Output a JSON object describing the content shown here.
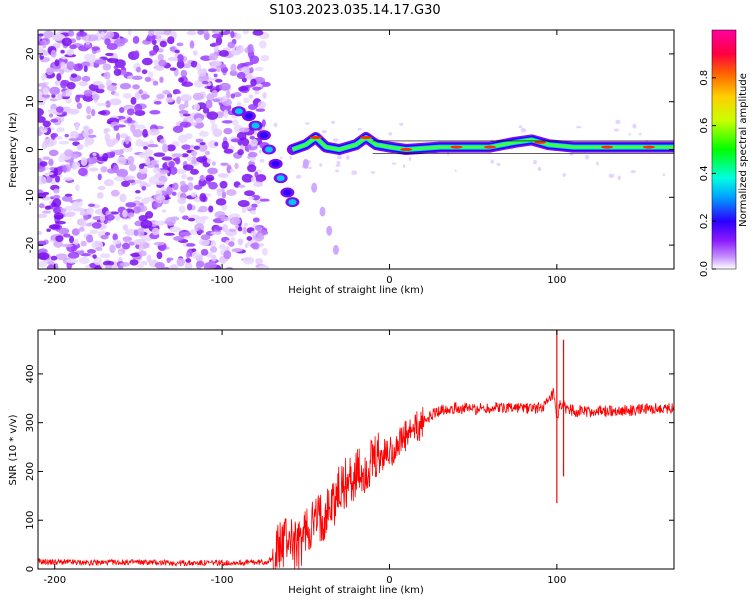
{
  "figure_title": "S103.2023.035.14.17.G30",
  "chart_data": [
    {
      "type": "heatmap",
      "title": "",
      "xlabel": "Height of straight line (km)",
      "ylabel": "Frequency (Hz)",
      "xlim": [
        -210,
        170
      ],
      "ylim": [
        -25,
        25
      ],
      "xticks": [
        -200,
        -100,
        0,
        100
      ],
      "yticks": [
        -20,
        -10,
        0,
        10,
        20
      ],
      "grid": false,
      "colorbar": {
        "label": "Normalized spectral amplitude",
        "range": [
          0,
          1
        ],
        "ticks": [
          0.0,
          0.2,
          0.4,
          0.6,
          0.8
        ],
        "colors": [
          "#ffffff",
          "#9c27ff",
          "#2a00ff",
          "#00a0ff",
          "#00ffe0",
          "#00ff00",
          "#c8ff00",
          "#ffd000",
          "#ff6000",
          "#ff0040",
          "#ff00a0"
        ]
      },
      "noise_region_km": [
        -210,
        -80
      ],
      "descending_trace": [
        {
          "x": -90,
          "y": 8
        },
        {
          "x": -84,
          "y": 7
        },
        {
          "x": -80,
          "y": 5
        },
        {
          "x": -75,
          "y": 3
        },
        {
          "x": -72,
          "y": 0
        },
        {
          "x": -68,
          "y": -3
        },
        {
          "x": -65,
          "y": -6
        },
        {
          "x": -61,
          "y": -9
        },
        {
          "x": -58,
          "y": -11
        }
      ],
      "faint_trace": [
        {
          "x": -50,
          "y": -3
        },
        {
          "x": -45,
          "y": -8
        },
        {
          "x": -40,
          "y": -13
        },
        {
          "x": -36,
          "y": -17
        },
        {
          "x": -32,
          "y": -21
        }
      ],
      "carrier_line": [
        {
          "x": -58,
          "y": 0.0
        },
        {
          "x": -50,
          "y": 1.0
        },
        {
          "x": -44,
          "y": 2.5
        },
        {
          "x": -38,
          "y": 0.5
        },
        {
          "x": -30,
          "y": 0.0
        },
        {
          "x": -20,
          "y": 1.0
        },
        {
          "x": -14,
          "y": 2.5
        },
        {
          "x": -8,
          "y": 1.0
        },
        {
          "x": 0,
          "y": 0.5
        },
        {
          "x": 10,
          "y": 0.0
        },
        {
          "x": 30,
          "y": 0.5
        },
        {
          "x": 60,
          "y": 0.5
        },
        {
          "x": 75,
          "y": 1.5
        },
        {
          "x": 85,
          "y": 2.0
        },
        {
          "x": 95,
          "y": 1.0
        },
        {
          "x": 110,
          "y": 0.5
        },
        {
          "x": 140,
          "y": 0.5
        },
        {
          "x": 170,
          "y": 0.5
        }
      ]
    },
    {
      "type": "line",
      "title": "",
      "xlabel": "Height of straight line (km)",
      "ylabel": "SNR (10 * v/v)",
      "xlim": [
        -210,
        170
      ],
      "ylim": [
        0,
        490
      ],
      "xticks": [
        -200,
        -100,
        0,
        100
      ],
      "yticks": [
        0,
        100,
        200,
        300,
        400
      ],
      "grid": false,
      "series": [
        {
          "color": "#ff0000",
          "x": [
            -210,
            -180,
            -150,
            -120,
            -90,
            -75,
            -70,
            -65,
            -60,
            -55,
            -50,
            -45,
            -40,
            -35,
            -30,
            -25,
            -20,
            -15,
            -10,
            -5,
            0,
            5,
            10,
            15,
            20,
            25,
            30,
            35,
            40,
            50,
            60,
            70,
            80,
            90,
            95,
            98,
            100,
            102,
            105,
            110,
            120,
            140,
            160,
            170
          ],
          "values": [
            15,
            13,
            14,
            12,
            13,
            14,
            18,
            50,
            70,
            40,
            80,
            95,
            110,
            130,
            160,
            180,
            190,
            200,
            215,
            230,
            240,
            255,
            270,
            285,
            300,
            315,
            325,
            330,
            330,
            328,
            330,
            332,
            330,
            330,
            340,
            360,
            300,
            340,
            330,
            325,
            322,
            325,
            328,
            330
          ]
        }
      ],
      "spikes": [
        {
          "x": 100,
          "max": 490,
          "min": 135
        },
        {
          "x": 104,
          "max": 470,
          "min": 190
        }
      ]
    }
  ]
}
